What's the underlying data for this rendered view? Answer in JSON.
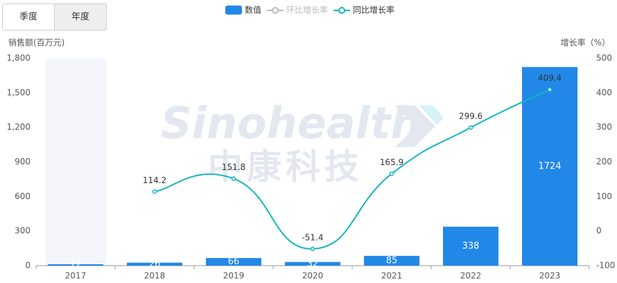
{
  "tabs": [
    "季度",
    "年度"
  ],
  "chart_data": {
    "type": "bar",
    "watermark": [
      "Sinohealth",
      "中康科技"
    ],
    "y_label": "销售额(百万元)",
    "y2_label": "增长率（%）",
    "categories": [
      "2017",
      "2018",
      "2019",
      "2020",
      "2021",
      "2022",
      "2023"
    ],
    "series": [
      {
        "name": "数值",
        "type": "bar",
        "color": "#2288e8",
        "values": [
          12,
          26,
          66,
          32,
          85,
          338,
          1724
        ]
      },
      {
        "name": "环比增长率",
        "type": "line",
        "axis": "y2",
        "color": "#bbbbbb",
        "visible": false,
        "values": [
          null,
          null,
          null,
          null,
          null,
          null,
          null
        ]
      },
      {
        "name": "同比增长率",
        "type": "line",
        "axis": "y2",
        "color": "#13b5c1",
        "values": [
          null,
          114.2,
          151.8,
          -51.4,
          165.9,
          299.6,
          409.4
        ]
      }
    ],
    "ylim": [
      0,
      1800
    ],
    "yticks": [
      0,
      300,
      600,
      900,
      {
        "value": 1200,
        "label": "1,200"
      },
      {
        "value": 1500,
        "label": "1,500"
      },
      {
        "value": 1800,
        "label": "1,800"
      }
    ],
    "y2lim": [
      -100,
      500
    ],
    "y2ticks": [
      -100,
      0,
      100,
      200,
      300,
      400,
      500
    ],
    "grid": false
  }
}
